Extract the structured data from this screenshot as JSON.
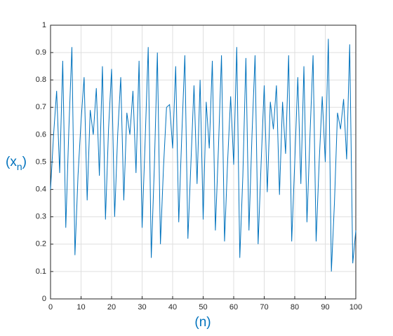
{
  "chart_data": {
    "type": "line",
    "xlabel": "(n)",
    "ylabel": [
      "(x",
      "n",
      ")"
    ],
    "x": [
      0,
      1,
      2,
      3,
      4,
      5,
      6,
      7,
      8,
      9,
      10,
      11,
      12,
      13,
      14,
      15,
      16,
      17,
      18,
      19,
      20,
      21,
      22,
      23,
      24,
      25,
      26,
      27,
      28,
      29,
      30,
      31,
      32,
      33,
      34,
      35,
      36,
      37,
      38,
      39,
      40,
      41,
      42,
      43,
      44,
      45,
      46,
      47,
      48,
      49,
      50,
      51,
      52,
      53,
      54,
      55,
      56,
      57,
      58,
      59,
      60,
      61,
      62,
      63,
      64,
      65,
      66,
      67,
      68,
      69,
      70,
      71,
      72,
      73,
      74,
      75,
      76,
      77,
      78,
      79,
      80,
      81,
      82,
      83,
      84,
      85,
      86,
      87,
      88,
      89,
      90,
      91,
      92,
      93,
      94,
      95,
      96,
      97,
      98,
      99,
      100
    ],
    "series": [
      {
        "color": "#0072bd",
        "values": [
          0.4,
          0.6,
          0.76,
          0.46,
          0.87,
          0.26,
          0.62,
          0.92,
          0.16,
          0.45,
          0.65,
          0.81,
          0.36,
          0.69,
          0.6,
          0.77,
          0.45,
          0.85,
          0.29,
          0.62,
          0.84,
          0.3,
          0.6,
          0.81,
          0.36,
          0.68,
          0.6,
          0.76,
          0.46,
          0.87,
          0.26,
          0.58,
          0.92,
          0.15,
          0.48,
          0.9,
          0.2,
          0.48,
          0.7,
          0.71,
          0.55,
          0.85,
          0.28,
          0.6,
          0.89,
          0.22,
          0.5,
          0.78,
          0.42,
          0.8,
          0.29,
          0.72,
          0.55,
          0.87,
          0.25,
          0.55,
          0.89,
          0.21,
          0.5,
          0.74,
          0.49,
          0.92,
          0.15,
          0.45,
          0.88,
          0.25,
          0.6,
          0.89,
          0.2,
          0.5,
          0.78,
          0.39,
          0.72,
          0.62,
          0.78,
          0.38,
          0.72,
          0.53,
          0.89,
          0.21,
          0.5,
          0.81,
          0.42,
          0.85,
          0.28,
          0.6,
          0.89,
          0.21,
          0.5,
          0.74,
          0.5,
          0.95,
          0.1,
          0.35,
          0.68,
          0.62,
          0.73,
          0.51,
          0.93,
          0.13,
          0.25
        ]
      }
    ],
    "xlim": [
      0,
      100
    ],
    "xticks": [
      0,
      10,
      20,
      30,
      40,
      50,
      60,
      70,
      80,
      90,
      100
    ],
    "ylim": [
      0,
      1
    ],
    "yticks": [
      0,
      0.1,
      0.2,
      0.3,
      0.4,
      0.5,
      0.6,
      0.7,
      0.8,
      0.9,
      1
    ],
    "grid": true
  }
}
